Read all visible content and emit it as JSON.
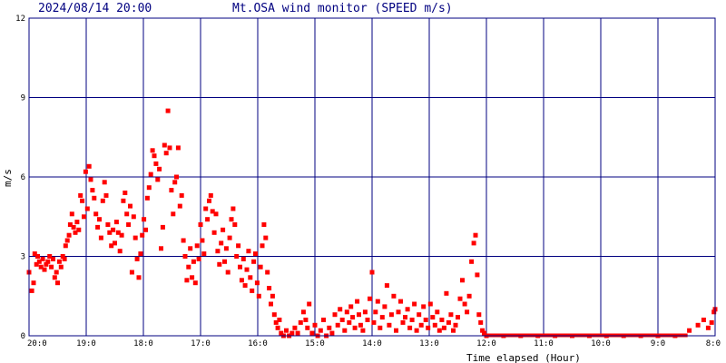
{
  "header": {
    "timestamp": "2024/08/14 20:00",
    "title": "Mt.OSA wind monitor (SPEED m/s)"
  },
  "chart_data": {
    "type": "scatter",
    "title": "Mt.OSA wind monitor (SPEED m/s)",
    "ylabel": "m/s",
    "xlabel": "Time elapsed (Hour)",
    "ylim": [
      0,
      12
    ],
    "xlim": [
      0,
      12
    ],
    "y_ticks": [
      "0",
      "3",
      "6",
      "9",
      "12"
    ],
    "x_tick_labels": [
      "20:0",
      "19:0",
      "18:0",
      "17:0",
      "16:0",
      "15:0",
      "14:0",
      "13:0",
      "12:0",
      "11:0",
      "10:0",
      "9:0",
      "8:0"
    ],
    "grid": true,
    "colors": {
      "points": "#ff0000",
      "grid": "#000080",
      "frame": "#000080",
      "heading": "#000080"
    },
    "series": [
      {
        "values": [
          [
            0.0,
            2.4
          ],
          [
            0.05,
            1.7
          ],
          [
            0.08,
            2.0
          ],
          [
            0.1,
            3.1
          ],
          [
            0.13,
            2.7
          ],
          [
            0.15,
            3.0
          ],
          [
            0.18,
            2.8
          ],
          [
            0.21,
            2.6
          ],
          [
            0.24,
            2.9
          ],
          [
            0.27,
            2.5
          ],
          [
            0.3,
            2.7
          ],
          [
            0.33,
            2.8
          ],
          [
            0.36,
            3.0
          ],
          [
            0.39,
            2.6
          ],
          [
            0.42,
            2.9
          ],
          [
            0.45,
            2.2
          ],
          [
            0.48,
            2.4
          ],
          [
            0.5,
            2.0
          ],
          [
            0.53,
            2.8
          ],
          [
            0.56,
            2.6
          ],
          [
            0.59,
            3.0
          ],
          [
            0.62,
            2.9
          ],
          [
            0.64,
            3.4
          ],
          [
            0.67,
            3.6
          ],
          [
            0.7,
            3.8
          ],
          [
            0.72,
            4.2
          ],
          [
            0.75,
            4.6
          ],
          [
            0.78,
            4.1
          ],
          [
            0.81,
            3.9
          ],
          [
            0.84,
            4.3
          ],
          [
            0.87,
            4.0
          ],
          [
            0.9,
            5.3
          ],
          [
            0.93,
            5.1
          ],
          [
            0.96,
            4.5
          ],
          [
            0.99,
            6.2
          ],
          [
            1.02,
            4.8
          ],
          [
            1.05,
            6.4
          ],
          [
            1.08,
            5.9
          ],
          [
            1.11,
            5.5
          ],
          [
            1.14,
            5.2
          ],
          [
            1.17,
            4.6
          ],
          [
            1.2,
            4.1
          ],
          [
            1.23,
            4.4
          ],
          [
            1.26,
            3.7
          ],
          [
            1.29,
            5.1
          ],
          [
            1.32,
            5.8
          ],
          [
            1.35,
            5.3
          ],
          [
            1.38,
            4.2
          ],
          [
            1.41,
            3.9
          ],
          [
            1.44,
            3.4
          ],
          [
            1.47,
            4.0
          ],
          [
            1.5,
            3.5
          ],
          [
            1.53,
            4.3
          ],
          [
            1.56,
            3.9
          ],
          [
            1.59,
            3.2
          ],
          [
            1.62,
            3.8
          ],
          [
            1.65,
            5.1
          ],
          [
            1.68,
            5.4
          ],
          [
            1.71,
            4.6
          ],
          [
            1.74,
            4.2
          ],
          [
            1.77,
            4.9
          ],
          [
            1.8,
            2.4
          ],
          [
            1.83,
            4.5
          ],
          [
            1.86,
            3.7
          ],
          [
            1.89,
            2.9
          ],
          [
            1.92,
            2.2
          ],
          [
            1.95,
            3.1
          ],
          [
            1.98,
            3.8
          ],
          [
            2.01,
            4.4
          ],
          [
            2.04,
            4.0
          ],
          [
            2.07,
            5.2
          ],
          [
            2.1,
            5.6
          ],
          [
            2.13,
            6.1
          ],
          [
            2.16,
            7.0
          ],
          [
            2.19,
            6.8
          ],
          [
            2.22,
            6.5
          ],
          [
            2.25,
            5.9
          ],
          [
            2.28,
            6.3
          ],
          [
            2.31,
            3.3
          ],
          [
            2.34,
            4.1
          ],
          [
            2.37,
            7.2
          ],
          [
            2.4,
            6.9
          ],
          [
            2.43,
            8.5
          ],
          [
            2.46,
            7.1
          ],
          [
            2.49,
            5.5
          ],
          [
            2.52,
            4.6
          ],
          [
            2.55,
            5.8
          ],
          [
            2.58,
            6.0
          ],
          [
            2.61,
            7.1
          ],
          [
            2.64,
            4.9
          ],
          [
            2.67,
            5.3
          ],
          [
            2.7,
            3.6
          ],
          [
            2.73,
            3.0
          ],
          [
            2.76,
            2.1
          ],
          [
            2.79,
            2.6
          ],
          [
            2.82,
            3.3
          ],
          [
            2.85,
            2.2
          ],
          [
            2.88,
            2.8
          ],
          [
            2.91,
            2.0
          ],
          [
            2.94,
            3.4
          ],
          [
            2.97,
            2.9
          ],
          [
            3.0,
            4.2
          ],
          [
            3.03,
            3.6
          ],
          [
            3.06,
            3.1
          ],
          [
            3.09,
            4.8
          ],
          [
            3.12,
            4.4
          ],
          [
            3.15,
            5.1
          ],
          [
            3.18,
            5.3
          ],
          [
            3.21,
            4.7
          ],
          [
            3.24,
            3.9
          ],
          [
            3.27,
            4.6
          ],
          [
            3.3,
            3.2
          ],
          [
            3.33,
            2.7
          ],
          [
            3.36,
            3.5
          ],
          [
            3.39,
            4.0
          ],
          [
            3.42,
            2.8
          ],
          [
            3.45,
            3.3
          ],
          [
            3.48,
            2.4
          ],
          [
            3.51,
            3.7
          ],
          [
            3.54,
            4.4
          ],
          [
            3.57,
            4.8
          ],
          [
            3.6,
            4.2
          ],
          [
            3.63,
            3.0
          ],
          [
            3.66,
            3.4
          ],
          [
            3.69,
            2.6
          ],
          [
            3.72,
            2.1
          ],
          [
            3.75,
            2.9
          ],
          [
            3.78,
            1.9
          ],
          [
            3.81,
            2.5
          ],
          [
            3.84,
            3.2
          ],
          [
            3.87,
            2.2
          ],
          [
            3.9,
            1.7
          ],
          [
            3.93,
            2.8
          ],
          [
            3.96,
            3.1
          ],
          [
            3.99,
            2.0
          ],
          [
            4.02,
            1.5
          ],
          [
            4.05,
            2.6
          ],
          [
            4.08,
            3.4
          ],
          [
            4.11,
            4.2
          ],
          [
            4.14,
            3.7
          ],
          [
            4.17,
            2.4
          ],
          [
            4.2,
            1.8
          ],
          [
            4.23,
            1.2
          ],
          [
            4.26,
            1.5
          ],
          [
            4.29,
            0.8
          ],
          [
            4.32,
            0.5
          ],
          [
            4.35,
            0.3
          ],
          [
            4.38,
            0.6
          ],
          [
            4.41,
            0.1
          ],
          [
            4.45,
            0.0
          ],
          [
            4.5,
            0.2
          ],
          [
            4.55,
            0.0
          ],
          [
            4.6,
            0.1
          ],
          [
            4.65,
            0.3
          ],
          [
            4.7,
            0.1
          ],
          [
            4.75,
            0.5
          ],
          [
            4.8,
            0.9
          ],
          [
            4.84,
            0.6
          ],
          [
            4.87,
            0.3
          ],
          [
            4.9,
            1.2
          ],
          [
            4.95,
            0.1
          ],
          [
            5.0,
            0.4
          ],
          [
            5.05,
            0.0
          ],
          [
            5.1,
            0.2
          ],
          [
            5.15,
            0.6
          ],
          [
            5.2,
            0.0
          ],
          [
            5.25,
            0.3
          ],
          [
            5.3,
            0.1
          ],
          [
            5.35,
            0.8
          ],
          [
            5.4,
            0.4
          ],
          [
            5.44,
            1.0
          ],
          [
            5.48,
            0.6
          ],
          [
            5.52,
            0.2
          ],
          [
            5.56,
            0.9
          ],
          [
            5.6,
            0.5
          ],
          [
            5.63,
            1.1
          ],
          [
            5.66,
            0.7
          ],
          [
            5.7,
            0.3
          ],
          [
            5.74,
            1.3
          ],
          [
            5.77,
            0.8
          ],
          [
            5.8,
            0.4
          ],
          [
            5.84,
            0.2
          ],
          [
            5.88,
            0.9
          ],
          [
            5.92,
            0.6
          ],
          [
            5.96,
            1.4
          ],
          [
            6.0,
            2.4
          ],
          [
            6.03,
            0.5
          ],
          [
            6.06,
            0.9
          ],
          [
            6.1,
            1.3
          ],
          [
            6.14,
            0.3
          ],
          [
            6.18,
            0.7
          ],
          [
            6.22,
            1.1
          ],
          [
            6.26,
            1.9
          ],
          [
            6.3,
            0.4
          ],
          [
            6.34,
            0.8
          ],
          [
            6.38,
            1.5
          ],
          [
            6.42,
            0.2
          ],
          [
            6.46,
            0.9
          ],
          [
            6.5,
            1.3
          ],
          [
            6.54,
            0.5
          ],
          [
            6.58,
            0.7
          ],
          [
            6.62,
            1.0
          ],
          [
            6.66,
            0.3
          ],
          [
            6.7,
            0.6
          ],
          [
            6.74,
            1.2
          ],
          [
            6.78,
            0.2
          ],
          [
            6.82,
            0.8
          ],
          [
            6.86,
            0.4
          ],
          [
            6.9,
            1.1
          ],
          [
            6.94,
            0.6
          ],
          [
            6.98,
            0.3
          ],
          [
            7.02,
            1.2
          ],
          [
            7.06,
            0.7
          ],
          [
            7.1,
            0.4
          ],
          [
            7.14,
            0.9
          ],
          [
            7.18,
            0.2
          ],
          [
            7.22,
            0.6
          ],
          [
            7.26,
            0.3
          ],
          [
            7.3,
            1.6
          ],
          [
            7.34,
            0.5
          ],
          [
            7.38,
            0.8
          ],
          [
            7.42,
            0.2
          ],
          [
            7.46,
            0.4
          ],
          [
            7.5,
            0.7
          ],
          [
            7.54,
            1.4
          ],
          [
            7.58,
            2.1
          ],
          [
            7.62,
            1.2
          ],
          [
            7.66,
            0.9
          ],
          [
            7.7,
            1.5
          ],
          [
            7.74,
            2.8
          ],
          [
            7.78,
            3.5
          ],
          [
            7.81,
            3.8
          ],
          [
            7.84,
            2.3
          ],
          [
            7.87,
            0.8
          ],
          [
            7.9,
            0.5
          ],
          [
            7.93,
            0.2
          ],
          [
            7.96,
            0.1
          ],
          [
            8.0,
            0.0
          ],
          [
            8.3,
            0.0
          ],
          [
            8.6,
            0.0
          ],
          [
            8.9,
            0.0
          ],
          [
            9.2,
            0.0
          ],
          [
            9.5,
            0.0
          ],
          [
            9.8,
            0.0
          ],
          [
            10.1,
            0.0
          ],
          [
            10.4,
            0.0
          ],
          [
            10.7,
            0.0
          ],
          [
            11.0,
            0.0
          ],
          [
            11.3,
            0.0
          ],
          [
            11.55,
            0.2
          ],
          [
            11.7,
            0.4
          ],
          [
            11.8,
            0.6
          ],
          [
            11.88,
            0.3
          ],
          [
            11.94,
            0.5
          ],
          [
            11.98,
            0.9
          ],
          [
            12.0,
            1.0
          ]
        ]
      }
    ]
  }
}
